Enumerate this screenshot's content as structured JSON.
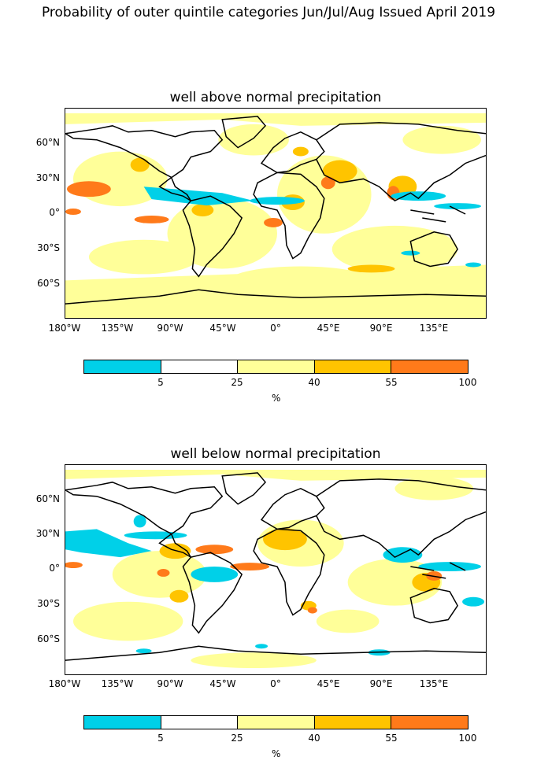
{
  "figure": {
    "title": "Probability of outer quintile categories Jun/Jul/Aug Issued April 2019"
  },
  "panels": [
    {
      "title": "well above normal precipitation",
      "lat_labels": [
        "60°N",
        "30°N",
        "0°",
        "30°S",
        "60°S"
      ],
      "lon_labels": [
        "180°W",
        "135°W",
        "90°W",
        "45°W",
        "0°",
        "45°E",
        "90°E",
        "135°E"
      ]
    },
    {
      "title": "well below normal precipitation",
      "lat_labels": [
        "60°N",
        "30°N",
        "0°",
        "30°S",
        "60°S"
      ],
      "lon_labels": [
        "180°W",
        "135°W",
        "90°W",
        "45°W",
        "0°",
        "45°E",
        "90°E",
        "135°E"
      ]
    }
  ],
  "colorbar": {
    "unit": "%",
    "tick_labels": [
      "5",
      "25",
      "40",
      "55",
      "100"
    ],
    "bins": [
      {
        "range": "0-5",
        "color": "#00d0e8"
      },
      {
        "range": "5-25",
        "color": "#ffffff"
      },
      {
        "range": "25-40",
        "color": "#ffff99"
      },
      {
        "range": "40-55",
        "color": "#ffc400"
      },
      {
        "range": "55-100",
        "color": "#ff7a1a"
      }
    ]
  },
  "colors": {
    "low": "#00d0e8",
    "light_yellow": "#ffff99",
    "amber": "#ffc400",
    "orange": "#ff7a1a",
    "coast": "#000000"
  }
}
